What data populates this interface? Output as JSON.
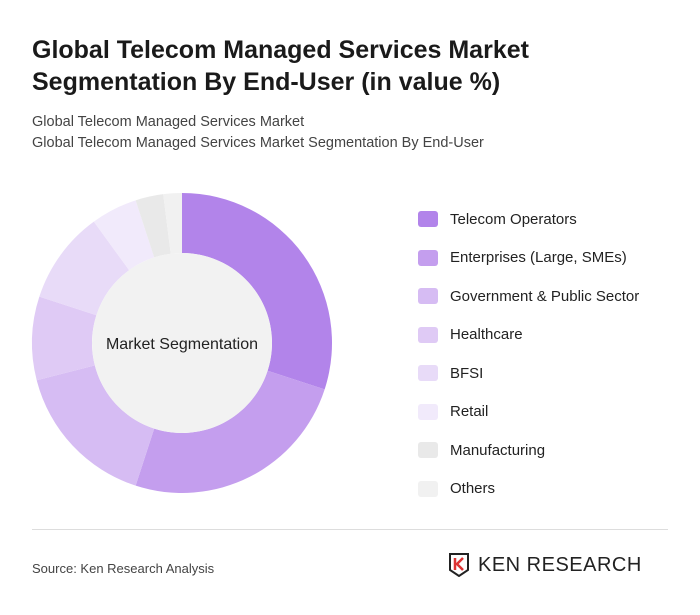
{
  "header": {
    "title": "Global Telecom Managed Services Market Segmentation By End-User (in value %)",
    "subtitle1": "Global Telecom Managed Services Market",
    "subtitle2": "Global Telecom Managed Services Market Segmentation By End-User"
  },
  "chart_data": {
    "type": "pie",
    "variant": "donut",
    "center_label": "Market Segmentation",
    "categories": [
      "Telecom Operators",
      "Enterprises (Large, SMEs)",
      "Government & Public Sector",
      "Healthcare",
      "BFSI",
      "Retail",
      "Manufacturing",
      "Others"
    ],
    "values": [
      30,
      25,
      16,
      9,
      10,
      5,
      3,
      2
    ],
    "colors": [
      "#b284ea",
      "#c49eee",
      "#d6bcf3",
      "#dfcaf5",
      "#e8dbf8",
      "#f1eafb",
      "#e9e9e9",
      "#f1f1f1"
    ],
    "legend_position": "right"
  },
  "footer": {
    "source": "Source: Ken Research Analysis",
    "logo": "KEN RESEARCH"
  }
}
